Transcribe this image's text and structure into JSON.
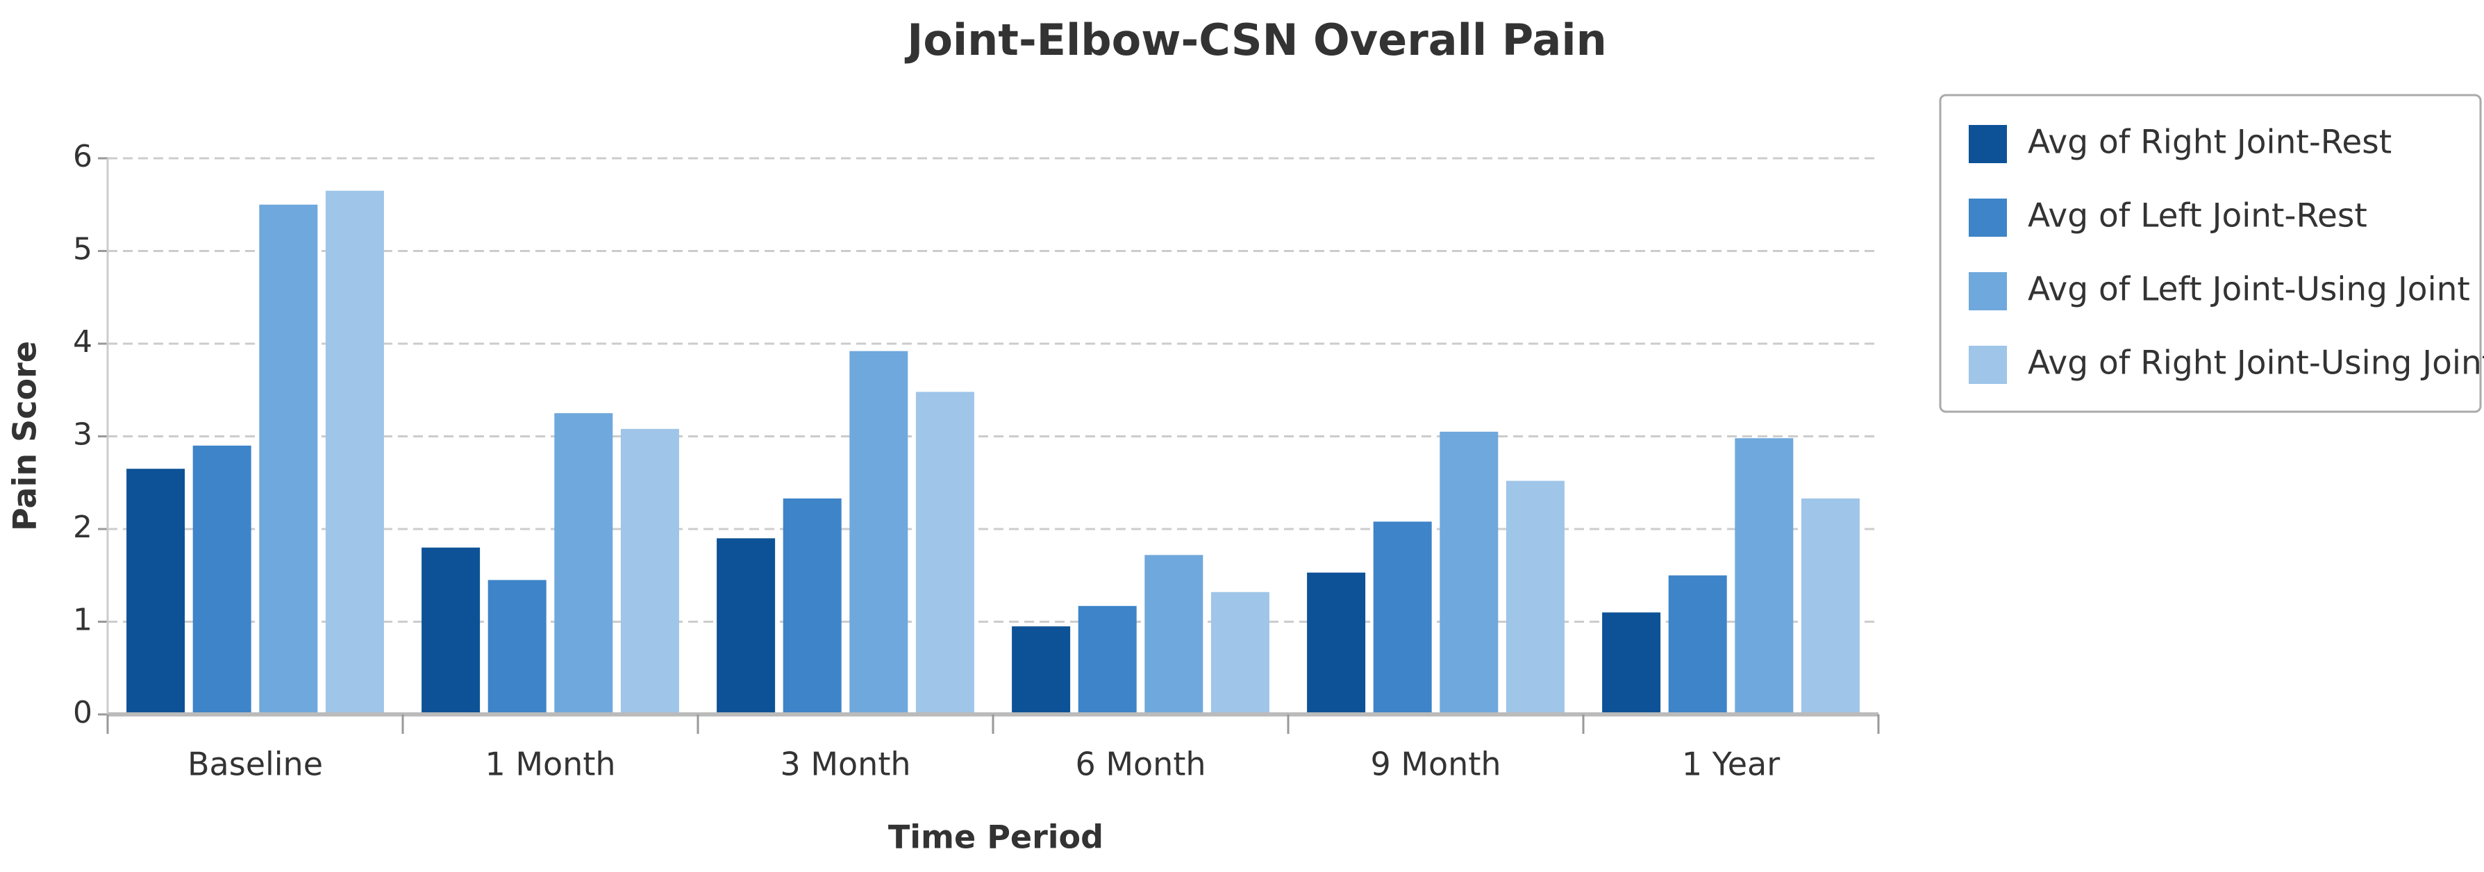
{
  "chart_data": {
    "type": "bar",
    "title": "Joint-Elbow-CSN Overall Pain",
    "x_label": "Time Period",
    "y_label": "Pain Score",
    "categories": [
      "Baseline",
      "1 Month",
      "3 Month",
      "6 Month",
      "9 Month",
      "1 Year"
    ],
    "series": [
      {
        "name": "Avg of Right Joint-Rest",
        "color": "#0d5296",
        "values": [
          2.65,
          1.8,
          1.9,
          0.95,
          1.53,
          1.1
        ]
      },
      {
        "name": "Avg of Left Joint-Rest",
        "color": "#3e84c8",
        "values": [
          2.9,
          1.45,
          2.33,
          1.17,
          2.08,
          1.5
        ]
      },
      {
        "name": "Avg of Left Joint-Using Joint",
        "color": "#6fa8dc",
        "values": [
          5.5,
          3.25,
          3.92,
          1.72,
          3.05,
          2.98
        ]
      },
      {
        "name": "Avg of Right Joint-Using Joint",
        "color": "#9fc5e8",
        "values": [
          5.65,
          3.08,
          3.48,
          1.32,
          2.52,
          2.33
        ]
      }
    ],
    "ylim": [
      0,
      6
    ],
    "yticks": [
      0,
      1,
      2,
      3,
      4,
      5,
      6
    ],
    "grid": true,
    "legend": "right"
  }
}
